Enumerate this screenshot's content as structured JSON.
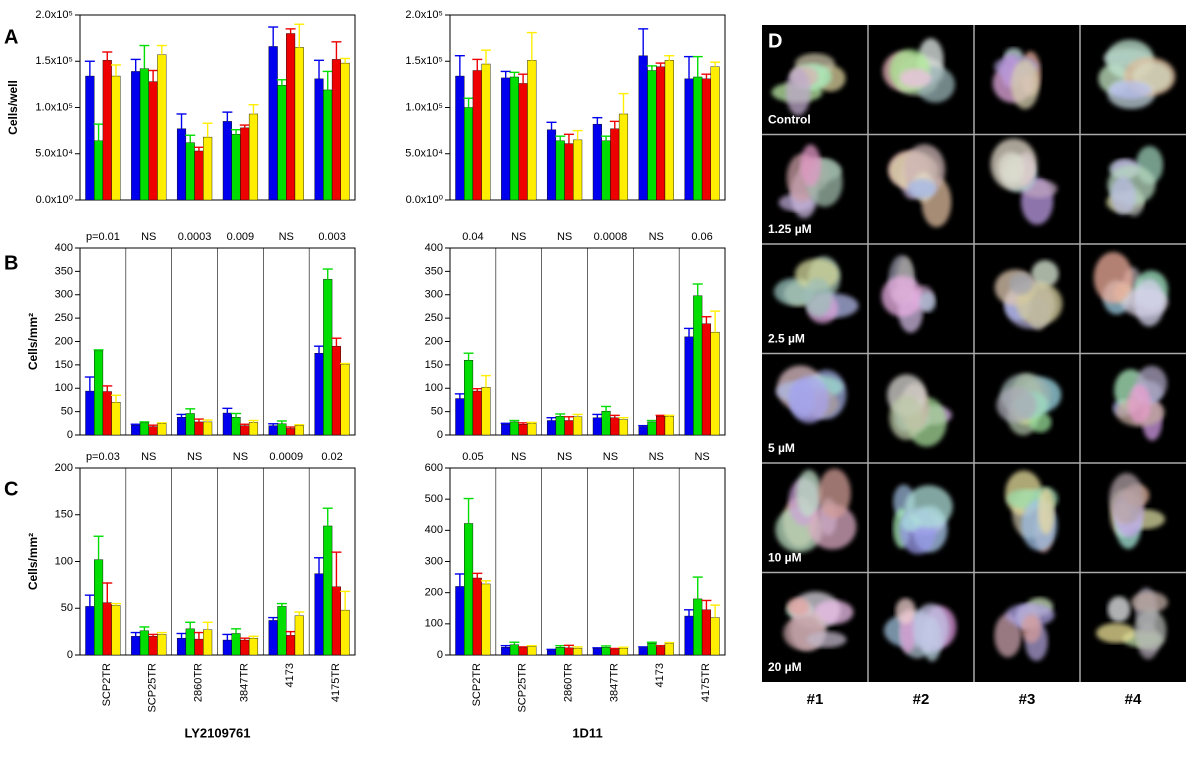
{
  "panel_labels": [
    "A",
    "B",
    "C",
    "D"
  ],
  "chart_data": [
    {
      "type": "bar",
      "ylabel": "Cells/well",
      "ylim": [
        0,
        200000
      ],
      "yticks": [
        {
          "value": 0,
          "label": "0.0x10⁰"
        },
        {
          "value": 50000,
          "label": "5.0x10⁴"
        },
        {
          "value": 100000,
          "label": "1.0x10⁵"
        },
        {
          "value": 150000,
          "label": "1.5x10⁵"
        },
        {
          "value": 200000,
          "label": "2.0x10⁵"
        }
      ],
      "separators": false,
      "series": [
        {
          "color": "#0000ee",
          "values": [
            134000,
            139000,
            77000,
            85000,
            166000,
            131000
          ],
          "errors": [
            16000,
            13000,
            16000,
            10000,
            21000,
            20000
          ]
        },
        {
          "color": "#00dd00",
          "values": [
            64000,
            142000,
            62000,
            71000,
            124000,
            119000
          ],
          "errors": [
            18000,
            25000,
            8000,
            5000,
            6000,
            20000
          ]
        },
        {
          "color": "#ee0000",
          "values": [
            151000,
            128000,
            53000,
            78000,
            180000,
            152000
          ],
          "errors": [
            9000,
            12000,
            4000,
            3000,
            5000,
            19000
          ]
        },
        {
          "color": "#ffee00",
          "values": [
            134000,
            157000,
            68000,
            93000,
            165000,
            148000
          ],
          "errors": [
            12000,
            10000,
            15000,
            10000,
            25000,
            5000
          ]
        }
      ]
    },
    {
      "type": "bar",
      "ylim": [
        0,
        200000
      ],
      "yticks": [
        {
          "value": 0,
          "label": "0.0x10⁰"
        },
        {
          "value": 50000,
          "label": "5.0x10⁴"
        },
        {
          "value": 100000,
          "label": "1.0x10⁵"
        },
        {
          "value": 150000,
          "label": "1.5x10⁵"
        },
        {
          "value": 200000,
          "label": "2.0x10⁵"
        }
      ],
      "separators": false,
      "series": [
        {
          "color": "#0000ee",
          "values": [
            134000,
            132000,
            76000,
            82000,
            156000,
            131000
          ],
          "errors": [
            22000,
            7000,
            8000,
            7000,
            29000,
            24000
          ]
        },
        {
          "color": "#00dd00",
          "values": [
            100000,
            133000,
            64000,
            64000,
            140000,
            133000
          ],
          "errors": [
            10000,
            5000,
            5000,
            5000,
            5000,
            22000
          ]
        },
        {
          "color": "#ee0000",
          "values": [
            140000,
            126000,
            61000,
            77000,
            144000,
            131000
          ],
          "errors": [
            12000,
            10000,
            10000,
            8000,
            4000,
            5000
          ]
        },
        {
          "color": "#ffee00",
          "values": [
            147000,
            151000,
            65000,
            93000,
            151000,
            144000
          ],
          "errors": [
            15000,
            30000,
            10000,
            22000,
            5000,
            5000
          ]
        }
      ]
    },
    {
      "type": "bar",
      "ylabel": "Cells/mm²",
      "ylim": [
        0,
        400
      ],
      "yticks": [
        0,
        50,
        100,
        150,
        200,
        250,
        300,
        350,
        400
      ],
      "separators": true,
      "annotations": [
        "p=0.01",
        "NS",
        "0.0003",
        "0.009",
        "NS",
        "0.003"
      ],
      "series": [
        {
          "color": "#0000ee",
          "values": [
            94,
            21,
            38,
            47,
            20,
            175
          ],
          "errors": [
            30,
            2,
            6,
            10,
            4,
            15
          ]
        },
        {
          "color": "#00dd00",
          "values": [
            180,
            26,
            46,
            38,
            24,
            333
          ],
          "errors": [
            2,
            2,
            10,
            8,
            6,
            22
          ]
        },
        {
          "color": "#ee0000",
          "values": [
            93,
            18,
            28,
            20,
            14,
            190
          ],
          "errors": [
            12,
            3,
            6,
            3,
            3,
            17
          ]
        },
        {
          "color": "#ffee00",
          "values": [
            70,
            24,
            28,
            27,
            20,
            151
          ],
          "errors": [
            15,
            2,
            4,
            4,
            2,
            2
          ]
        }
      ]
    },
    {
      "type": "bar",
      "ylim": [
        0,
        400
      ],
      "yticks": [
        0,
        50,
        100,
        150,
        200,
        250,
        300,
        350,
        400
      ],
      "separators": true,
      "annotations": [
        "0.04",
        "NS",
        "NS",
        "0.0008",
        "NS",
        "0.06"
      ],
      "series": [
        {
          "color": "#0000ee",
          "values": [
            78,
            23,
            31,
            37,
            18,
            210
          ],
          "errors": [
            10,
            2,
            6,
            7,
            2,
            18
          ]
        },
        {
          "color": "#00dd00",
          "values": [
            160,
            28,
            40,
            51,
            28,
            298
          ],
          "errors": [
            15,
            3,
            5,
            10,
            3,
            25
          ]
        },
        {
          "color": "#ee0000",
          "values": [
            94,
            23,
            31,
            37,
            40,
            238
          ],
          "errors": [
            5,
            3,
            8,
            5,
            2,
            15
          ]
        },
        {
          "color": "#ffee00",
          "values": [
            102,
            25,
            39,
            33,
            40,
            220
          ],
          "errors": [
            25,
            2,
            5,
            4,
            2,
            45
          ]
        }
      ]
    },
    {
      "type": "bar",
      "ylabel": "Cells/mm²",
      "ylim": [
        0,
        200
      ],
      "yticks": [
        0,
        50,
        100,
        150,
        200
      ],
      "separators": true,
      "annotations": [
        "p=0.03",
        "NS",
        "NS",
        "NS",
        "0.0009",
        "0.02"
      ],
      "categories": [
        "SCP2TR",
        "SCP25TR",
        "2860TR",
        "3847TR",
        "4173",
        "4175TR"
      ],
      "xlabel": "LY2109761",
      "series": [
        {
          "color": "#0000ee",
          "values": [
            52,
            20,
            18,
            16,
            37,
            87
          ],
          "errors": [
            12,
            4,
            5,
            6,
            3,
            17
          ]
        },
        {
          "color": "#00dd00",
          "values": [
            102,
            26,
            28,
            23,
            52,
            138
          ],
          "errors": [
            25,
            4,
            7,
            5,
            3,
            19
          ]
        },
        {
          "color": "#ee0000",
          "values": [
            56,
            20,
            17,
            16,
            21,
            73
          ],
          "errors": [
            21,
            2,
            7,
            2,
            4,
            37
          ]
        },
        {
          "color": "#ffee00",
          "values": [
            53,
            22,
            27,
            18,
            42,
            48
          ],
          "errors": [
            2,
            2,
            8,
            2,
            4,
            20
          ]
        }
      ]
    },
    {
      "type": "bar",
      "ylim": [
        0,
        600
      ],
      "yticks": [
        0,
        100,
        200,
        300,
        400,
        500,
        600
      ],
      "separators": true,
      "annotations": [
        "0.05",
        "NS",
        "NS",
        "NS",
        "NS",
        "NS"
      ],
      "categories": [
        "SCP2TR",
        "SCP25TR",
        "2860TR",
        "3847TR",
        "4173",
        "4175TR"
      ],
      "xlabel": "1D11",
      "series": [
        {
          "color": "#0000ee",
          "values": [
            220,
            25,
            15,
            20,
            23,
            125
          ],
          "errors": [
            40,
            5,
            3,
            3,
            3,
            20
          ]
        },
        {
          "color": "#00dd00",
          "values": [
            422,
            33,
            25,
            25,
            38,
            180
          ],
          "errors": [
            80,
            8,
            5,
            4,
            3,
            70
          ]
        },
        {
          "color": "#ee0000",
          "values": [
            247,
            23,
            23,
            18,
            27,
            145
          ],
          "errors": [
            15,
            3,
            8,
            3,
            3,
            30
          ]
        },
        {
          "color": "#ffee00",
          "values": [
            228,
            27,
            22,
            22,
            37,
            120
          ],
          "errors": [
            10,
            3,
            4,
            3,
            3,
            40
          ]
        }
      ]
    }
  ],
  "microscopy": {
    "row_labels": [
      "Control",
      "1.25 µM",
      "2.5 µM",
      "5 µM",
      "10 µM",
      "20 µM"
    ],
    "column_labels": [
      "#1",
      "#2",
      "#3",
      "#4"
    ]
  }
}
